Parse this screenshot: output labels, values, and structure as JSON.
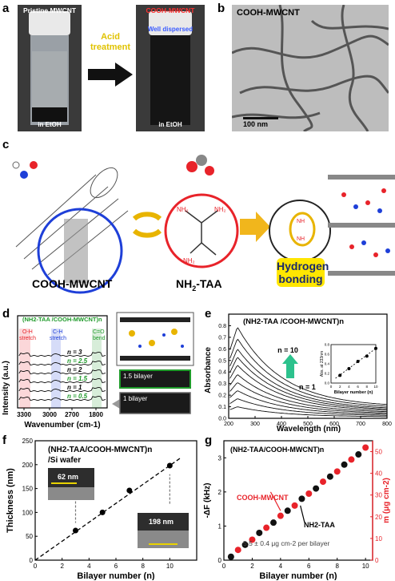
{
  "panels": {
    "a": {
      "letter": "a",
      "vial1_title": "Pristine MWCNT",
      "vial1_solvent": "in EtOH",
      "arrow_label_1": "Acid",
      "arrow_label_2": "treatment",
      "vial2_title": "COOH-MWCNT",
      "vial2_note": "Well dispersed",
      "vial2_solvent": "in EtOH"
    },
    "b": {
      "letter": "b",
      "title": "COOH-MWCNT",
      "scale_bar": "100 nm"
    },
    "c": {
      "letter": "c",
      "label_left": "COOH-MWCNT",
      "label_mid_prefix": "NH",
      "label_mid_sub": "2",
      "label_mid_suffix": "-TAA",
      "amine_label": "NH2",
      "hbond_line1": "Hydrogen",
      "hbond_line2": "bonding"
    },
    "d": {
      "letter": "d",
      "title": "(NH2-TAA /COOH-MWCNT)n",
      "ylabel": "Intensity (a.u.)",
      "xlabel": "Wavenumber (cm-1)",
      "x_ticks": [
        "3300",
        "3000",
        "2700",
        "1800"
      ],
      "bands": [
        {
          "l1": "O-H",
          "l2": "stretch",
          "color": "#e8232a"
        },
        {
          "l1": "C-H",
          "l2": "stretch",
          "color": "#1e3fd8"
        },
        {
          "l1": "C=O",
          "l2": "bend",
          "color": "#1f9a2a"
        }
      ],
      "curve_labels": [
        "n = 3",
        "n = 2.5",
        "n = 2",
        "n = 1.5",
        "n = 1",
        "n = 0.5"
      ],
      "inset_label_top": "1.5 bilayer",
      "inset_label_bottom": "1 bilayer"
    },
    "e": {
      "letter": "e",
      "title": "(NH2-TAA /COOH-MWCNT)n",
      "ylabel": "Absorbance",
      "xlabel": "Wavelength (nm)",
      "n_top": "n = 10",
      "n_bottom": "n = 1",
      "inset_ylabel": "Abs. at 233nm",
      "inset_xlabel": "Bilayer number (n)"
    },
    "f": {
      "letter": "f",
      "title_1": "(NH2-TAA/COOH-MWCNT)n",
      "title_2": "/Si wafer",
      "sem1": "62 nm",
      "sem2": "198 nm"
    },
    "g": {
      "letter": "g",
      "title": "(NH2-TAA/COOH-MWCNT)n",
      "label_red": "COOH-MWCNT",
      "label_black": "NH2-TAA",
      "note": "5.5 ± 0.4 μg cm-2 per bilayer"
    }
  },
  "chart_data": [
    {
      "panel": "d",
      "type": "line",
      "title": "(NH2-TAA /COOH-MWCNT)n",
      "xlabel": "Wavenumber (cm-1)",
      "ylabel": "Intensity (a.u.)",
      "x_ticks": [
        3300,
        3000,
        2700,
        1800
      ],
      "series": [
        {
          "name": "n = 3"
        },
        {
          "name": "n = 2.5"
        },
        {
          "name": "n = 2"
        },
        {
          "name": "n = 1.5"
        },
        {
          "name": "n = 1"
        },
        {
          "name": "n = 0.5"
        }
      ]
    },
    {
      "panel": "e",
      "type": "line",
      "title": "(NH2-TAA /COOH-MWCNT)n",
      "xlabel": "Wavelength (nm)",
      "ylabel": "Absorbance",
      "xlim": [
        200,
        800
      ],
      "ylim": [
        0,
        0.9
      ],
      "x_ticks": [
        200,
        300,
        400,
        500,
        600,
        700,
        800
      ],
      "y_ticks": [
        0.0,
        0.1,
        0.2,
        0.3,
        0.4,
        0.5,
        0.6,
        0.7,
        0.8
      ],
      "peak_wavelength": 233,
      "series_peak_absorbance": [
        0.1,
        0.17,
        0.24,
        0.31,
        0.38,
        0.46,
        0.53,
        0.6,
        0.69,
        0.79
      ],
      "inset": {
        "type": "scatter",
        "xlabel": "Bilayer number (n)",
        "ylabel": "Abs. at 233nm",
        "x_ticks": [
          0,
          2,
          4,
          6,
          8,
          10
        ],
        "y_ticks": [
          0.0,
          0.2,
          0.4,
          0.6,
          0.8
        ],
        "x": [
          2,
          4,
          6,
          8,
          10
        ],
        "y": [
          0.16,
          0.3,
          0.45,
          0.56,
          0.72
        ]
      }
    },
    {
      "panel": "f",
      "type": "scatter",
      "title": "(NH2-TAA/COOH-MWCNT)n /Si wafer",
      "xlabel": "Bilayer number (n)",
      "ylabel": "Thickness (nm)",
      "xlim": [
        0,
        12
      ],
      "ylim": [
        0,
        250
      ],
      "x_ticks": [
        0,
        2,
        4,
        6,
        8,
        10
      ],
      "y_ticks": [
        0,
        50,
        100,
        150,
        200,
        250
      ],
      "x": [
        3,
        5,
        7,
        10
      ],
      "y": [
        62,
        100,
        146,
        198
      ]
    },
    {
      "panel": "g",
      "type": "scatter",
      "title": "(NH2-TAA/COOH-MWCNT)n",
      "xlabel": "Bilayer number (n)",
      "ylabel": "-ΔF (kHz)",
      "ylabel_right": "m (μg cm-2)",
      "xlim": [
        0,
        10.5
      ],
      "ylim": [
        0,
        3.5
      ],
      "ylim_right": [
        0,
        55
      ],
      "x_ticks": [
        0,
        2,
        4,
        6,
        8,
        10
      ],
      "y_ticks": [
        0,
        1,
        2,
        3
      ],
      "y_ticks_right": [
        0,
        10,
        20,
        30,
        40,
        50
      ],
      "series": [
        {
          "name": "COOH-MWCNT",
          "color": "#e8232a",
          "x": [
            1,
            2,
            3,
            4,
            5,
            6,
            7,
            8,
            9,
            10
          ],
          "y": [
            0.3,
            0.6,
            0.95,
            1.3,
            1.6,
            1.95,
            2.3,
            2.6,
            2.95,
            3.3
          ]
        },
        {
          "name": "NH2-TAA",
          "color": "#111111",
          "x": [
            0.5,
            1.5,
            2.5,
            3.5,
            4.5,
            5.5,
            6.5,
            7.5,
            8.5,
            9.5
          ],
          "y": [
            0.1,
            0.45,
            0.8,
            1.1,
            1.45,
            1.8,
            2.1,
            2.45,
            2.8,
            3.1
          ]
        }
      ]
    }
  ]
}
